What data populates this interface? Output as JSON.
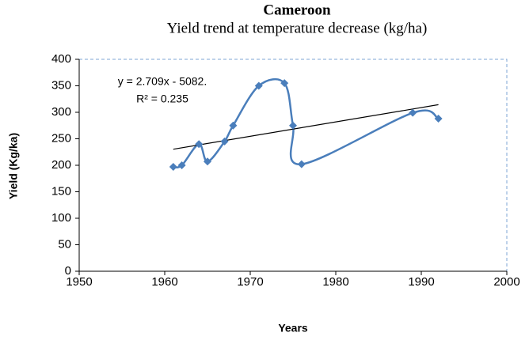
{
  "chart_data": {
    "type": "scatter",
    "title": "Cameroon",
    "subtitle": "Yield trend at temperature decrease (kg/ha)",
    "x_label": "Years",
    "y_label": "Yield (Kg/ka)",
    "series": [
      {
        "name": "Yield",
        "color": "#4a7ebb",
        "x": [
          1961,
          1962,
          1964,
          1965,
          1967,
          1968,
          1971,
          1974,
          1975,
          1976,
          1989,
          1992
        ],
        "values": [
          197,
          200,
          240,
          207,
          245,
          275,
          350,
          355,
          275,
          202,
          299,
          288
        ]
      }
    ],
    "trendline": {
      "slope": 2.709,
      "intercept": -5082,
      "color": "#000000",
      "equation_label": "y = 2.709x - 5082.",
      "r2_label": "R² = 0.235"
    },
    "xlim": [
      1950,
      2000
    ],
    "xticks": [
      1950,
      1960,
      1970,
      1980,
      1990,
      2000
    ],
    "ylim": [
      0,
      400
    ],
    "yticks": [
      0,
      50,
      100,
      150,
      200,
      250,
      300,
      350,
      400
    ],
    "grid": false
  }
}
